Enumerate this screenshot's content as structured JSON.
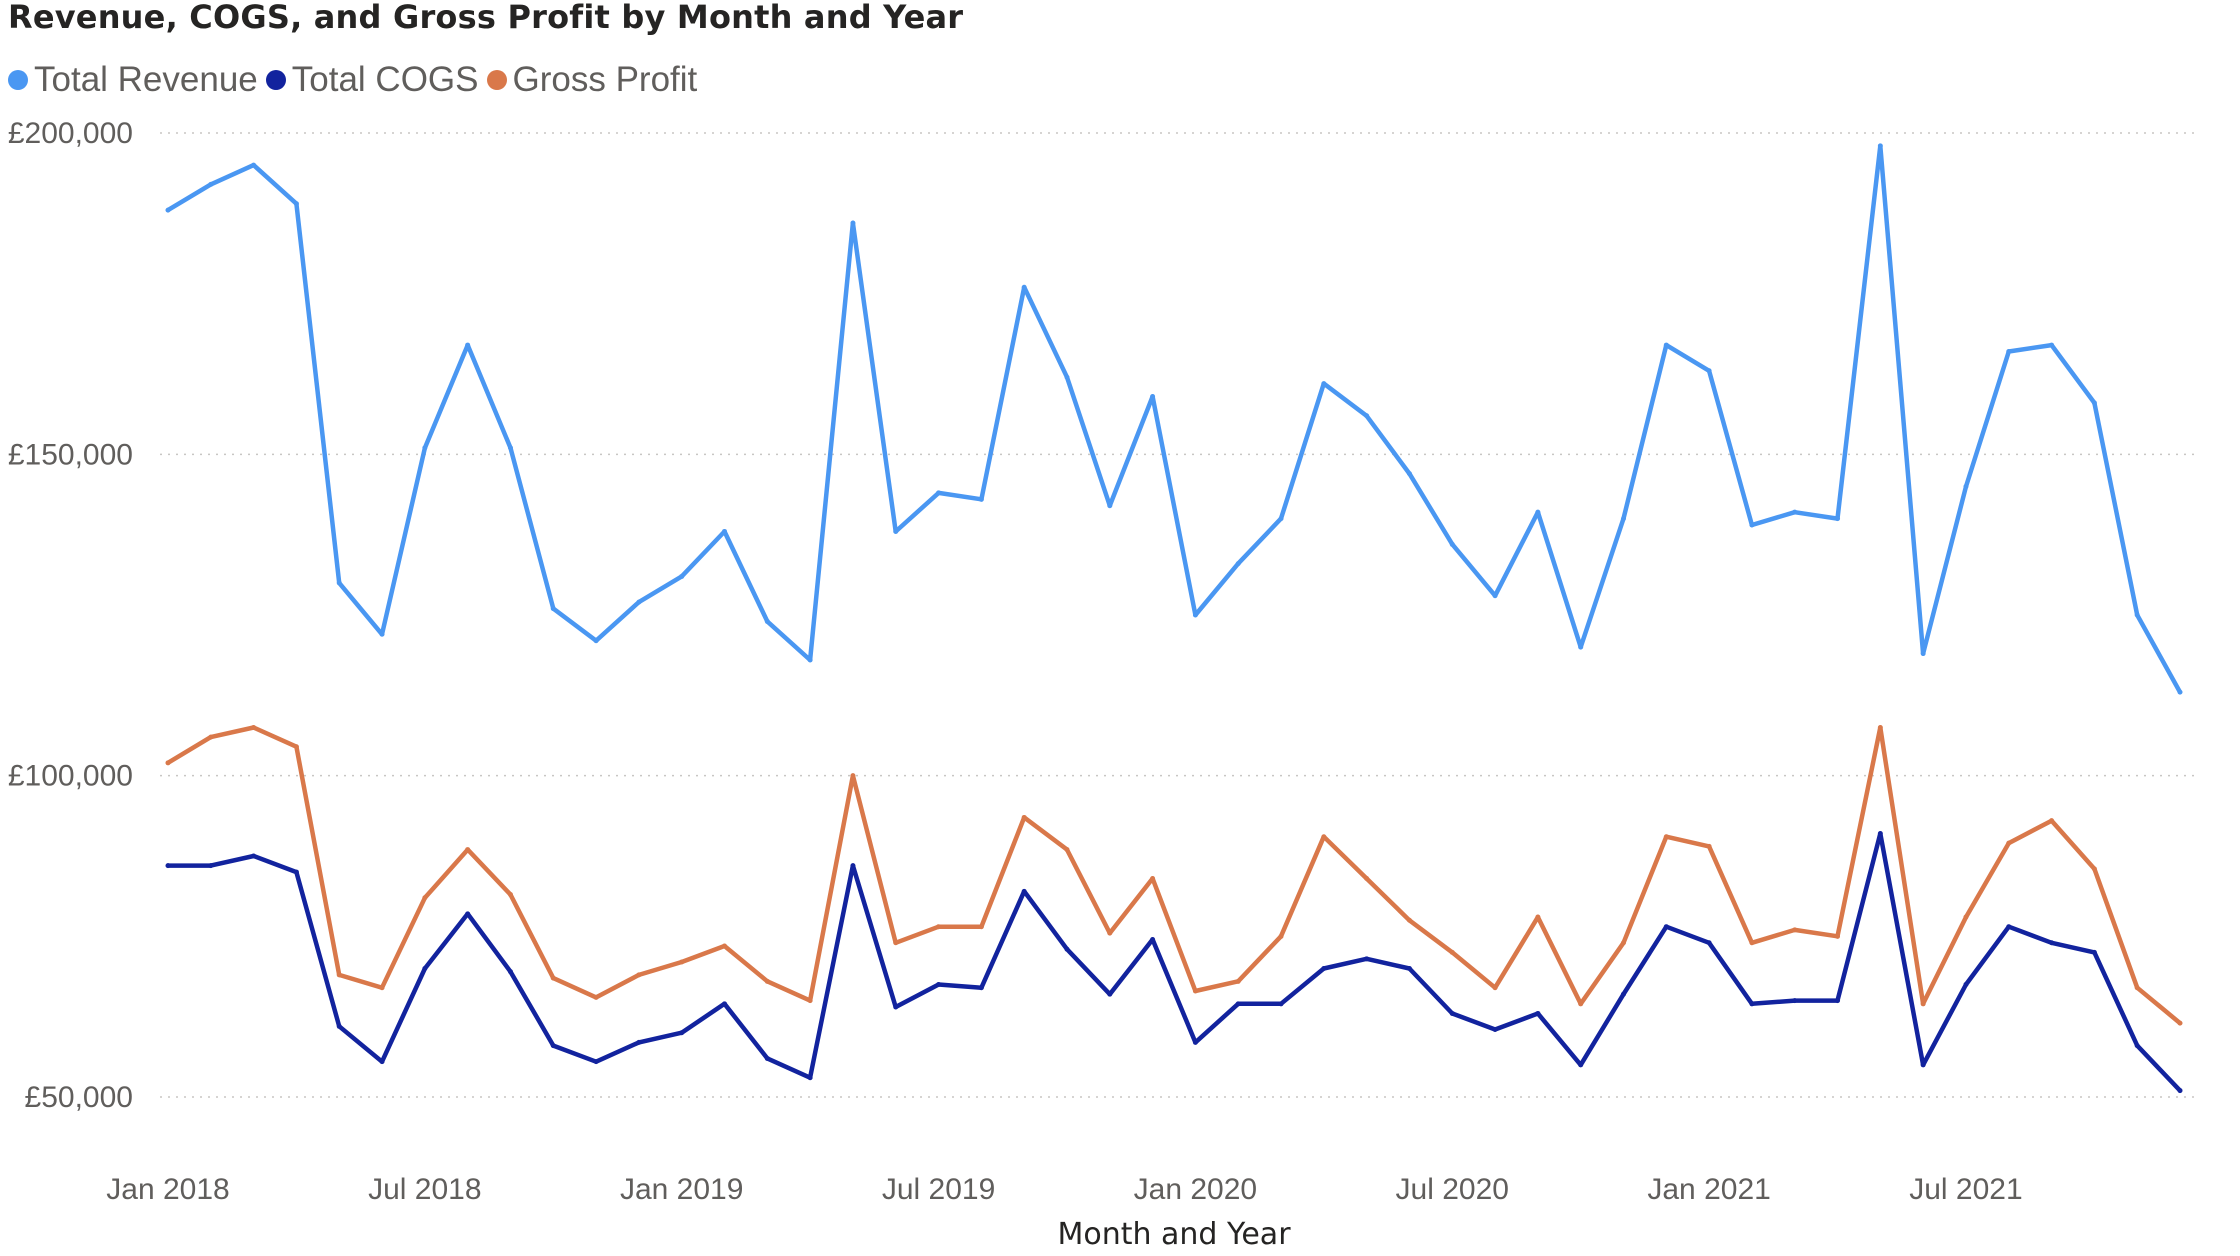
{
  "chart_data": {
    "type": "line",
    "title": "Revenue, COGS, and Gross Profit by Month and Year",
    "xlabel": "Month and Year",
    "ylabel": "",
    "ylim": [
      50000,
      200000
    ],
    "y_ticks": [
      "£200,000",
      "£150,000",
      "£100,000",
      "£50,000"
    ],
    "y_tick_values": [
      200000,
      150000,
      100000,
      50000
    ],
    "x_ticks": [
      "Jan 2018",
      "Jul 2018",
      "Jan 2019",
      "Jul 2019",
      "Jan 2020",
      "Jul 2020",
      "Jan 2021",
      "Jul 2021"
    ],
    "x_tick_index": [
      0,
      6,
      12,
      18,
      24,
      30,
      36,
      42
    ],
    "grid": "horizontal dotted",
    "legend_position": "top-left",
    "categories": [
      "Jan 2018",
      "Feb 2018",
      "Mar 2018",
      "Apr 2018",
      "May 2018",
      "Jun 2018",
      "Jul 2018",
      "Aug 2018",
      "Sep 2018",
      "Oct 2018",
      "Nov 2018",
      "Dec 2018",
      "Jan 2019",
      "Feb 2019",
      "Mar 2019",
      "Apr 2019",
      "May 2019",
      "Jun 2019",
      "Jul 2019",
      "Aug 2019",
      "Sep 2019",
      "Oct 2019",
      "Nov 2019",
      "Dec 2019",
      "Jan 2020",
      "Feb 2020",
      "Mar 2020",
      "Apr 2020",
      "May 2020",
      "Jun 2020",
      "Jul 2020",
      "Aug 2020",
      "Sep 2020",
      "Oct 2020",
      "Nov 2020",
      "Dec 2020",
      "Jan 2021",
      "Feb 2021",
      "Mar 2021",
      "Apr 2021",
      "May 2021",
      "Jun 2021",
      "Jul 2021",
      "Aug 2021",
      "Sep 2021",
      "Oct 2021",
      "Nov 2021",
      "Dec 2021"
    ],
    "series": [
      {
        "name": "Total Revenue",
        "color": "#4A97F2",
        "values": [
          188000,
          192000,
          195000,
          189000,
          130000,
          122000,
          151000,
          167000,
          151000,
          126000,
          121000,
          127000,
          131000,
          138000,
          124000,
          118000,
          186000,
          138000,
          144000,
          143000,
          176000,
          162000,
          142000,
          159000,
          125000,
          133000,
          140000,
          161000,
          156000,
          147000,
          136000,
          128000,
          141000,
          120000,
          140000,
          167000,
          163000,
          139000,
          141000,
          140000,
          198000,
          119000,
          145000,
          166000,
          167000,
          158000,
          125000,
          113000
        ]
      },
      {
        "name": "Total COGS",
        "color": "#12239E",
        "values": [
          86000,
          86000,
          87500,
          85000,
          61000,
          55500,
          70000,
          78500,
          69500,
          58000,
          55500,
          58500,
          60000,
          64500,
          56000,
          53000,
          86000,
          64000,
          67500,
          67000,
          82000,
          73000,
          66000,
          74500,
          58500,
          64500,
          64500,
          70000,
          71500,
          70000,
          63000,
          60500,
          63000,
          55000,
          66000,
          76500,
          74000,
          64500,
          65000,
          65000,
          91000,
          55000,
          67500,
          76500,
          74000,
          72500,
          58000,
          51000
        ]
      },
      {
        "name": "Gross Profit",
        "color": "#D9784A",
        "values": [
          102000,
          106000,
          107500,
          104500,
          69000,
          67000,
          81000,
          88500,
          81500,
          68500,
          65500,
          69000,
          71000,
          73500,
          68000,
          65000,
          100000,
          74000,
          76500,
          76500,
          93500,
          88500,
          75500,
          84000,
          66500,
          68000,
          75000,
          90500,
          84000,
          77500,
          72500,
          67000,
          78000,
          64500,
          74000,
          90500,
          89000,
          74000,
          76000,
          75000,
          107500,
          64500,
          78000,
          89500,
          93000,
          85500,
          67000,
          61500
        ]
      }
    ]
  }
}
